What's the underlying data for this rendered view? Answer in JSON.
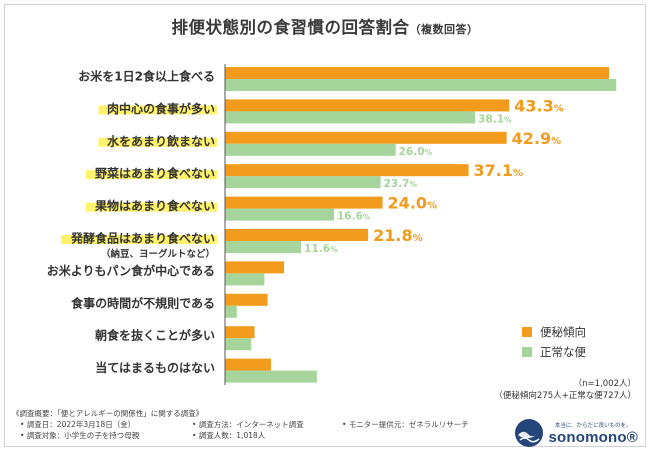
{
  "title": "排便状態別の食習慣の回答割合",
  "title_sub": "（複数回答）",
  "chart_data": {
    "type": "bar",
    "orientation": "horizontal",
    "xlim": [
      0,
      62
    ],
    "categories": [
      {
        "label": "お米を1日2食以上食べる",
        "highlight": false
      },
      {
        "label": "肉中心の食事が多い",
        "highlight": true
      },
      {
        "label": "水をあまり飲まない",
        "highlight": true
      },
      {
        "label": "野菜はあまり食べない",
        "highlight": true
      },
      {
        "label": "果物はあまり食べない",
        "highlight": true
      },
      {
        "label": "発酵食品はあまり食べない",
        "highlight": true,
        "sub": "（納豆、ヨーグルトなど）"
      },
      {
        "label": "お米よりもパン食が中心である",
        "highlight": false
      },
      {
        "label": "食事の時間が不規則である",
        "highlight": false
      },
      {
        "label": "朝食を抜くことが多い",
        "highlight": false
      },
      {
        "label": "当てはまるものはない",
        "highlight": false
      }
    ],
    "series": [
      {
        "name": "便秘傾向",
        "color": "#f39b1c",
        "values": [
          58.5,
          43.3,
          42.9,
          37.1,
          24.0,
          21.8,
          9.0,
          6.5,
          4.5,
          7.0
        ],
        "labels": [
          null,
          "43.3%",
          "42.9%",
          "37.1%",
          "24.0%",
          "21.8%",
          null,
          null,
          null,
          null
        ]
      },
      {
        "name": "正常な便",
        "color": "#a5d59a",
        "values": [
          59.6,
          38.1,
          26.0,
          23.7,
          16.6,
          11.6,
          6.0,
          1.8,
          4.0,
          14.0
        ],
        "labels": [
          null,
          "38.1%",
          "26.0%",
          "23.7%",
          "16.6%",
          "11.6%",
          null,
          null,
          null,
          null
        ]
      }
    ]
  },
  "legend": [
    {
      "label": "便秘傾向",
      "color": "#f39b1c"
    },
    {
      "label": "正常な便",
      "color": "#a5d59a"
    }
  ],
  "sample": {
    "n": "（n=1,002人）",
    "breakdown": "（便秘傾向275人+正常な便727人）"
  },
  "footnote": {
    "heading": "《調査概要：「便とアレルギーの関係性」に関する調査》",
    "items": [
      "調査日：2022年3月18日（金）",
      "調査方法：インターネット調査",
      "モニター提供元：ゼネラルリサーチ",
      "調査対象：小学生の子を持つ母親",
      "調査人数：1,018人"
    ]
  },
  "brand": {
    "tagline": "本当に、からだに良いものを。",
    "name": "sonomono®",
    "color": "#24467a"
  },
  "highlight_color": "#fff36b"
}
